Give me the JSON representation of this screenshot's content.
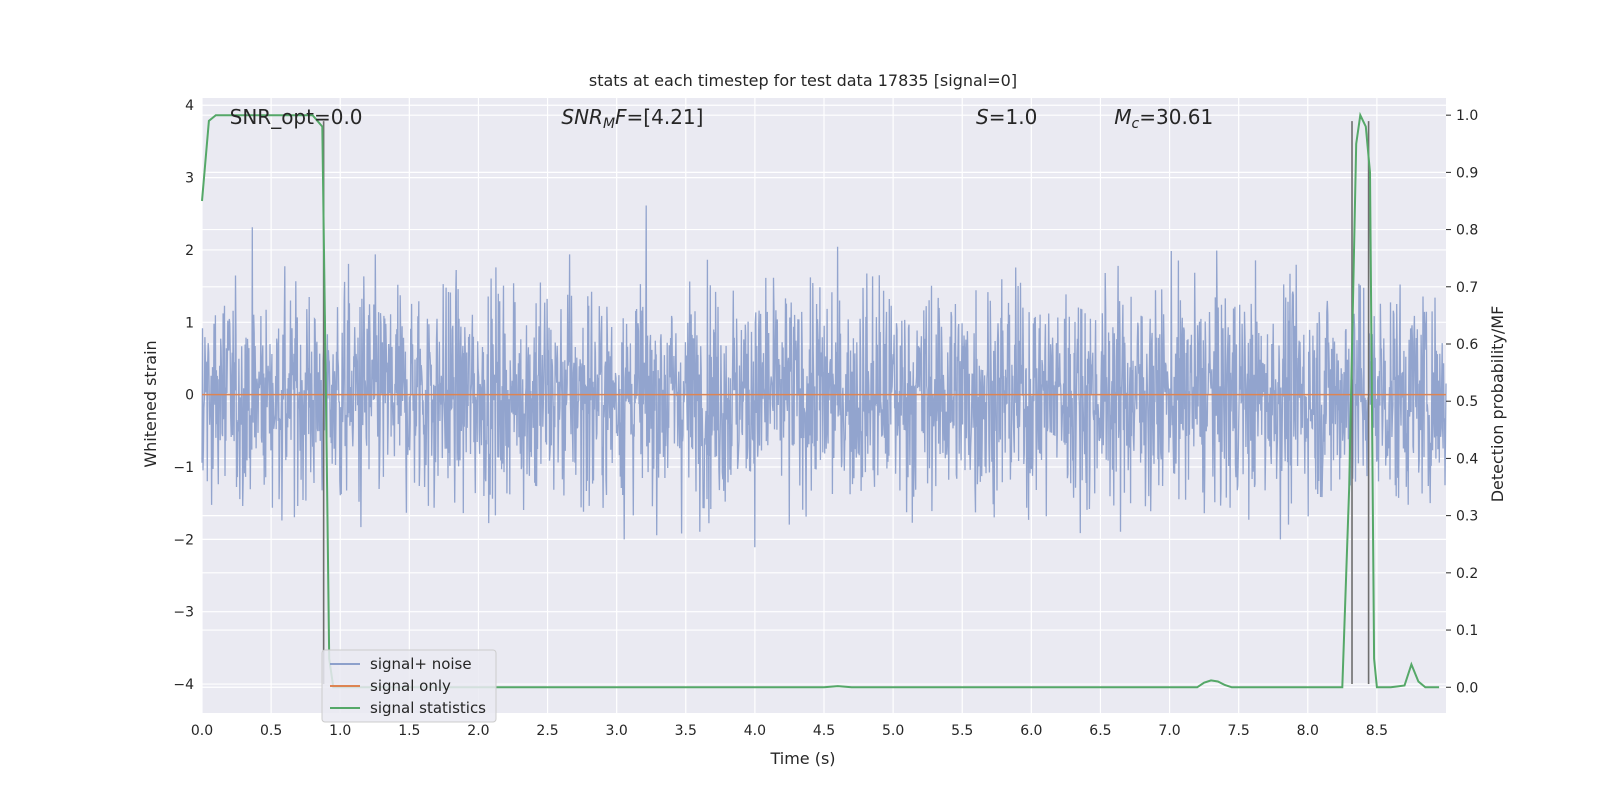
{
  "chart_data": {
    "type": "line",
    "title": "stats at each timestep for test data 17835 [signal=0]",
    "xlabel": "Time (s)",
    "ylabel": "Whitened strain",
    "y2label": "Detection probability/MF",
    "xlim": [
      0.0,
      9.0
    ],
    "ylim": [
      -4.4,
      4.1
    ],
    "y2lim": [
      -0.045,
      1.03
    ],
    "xticks": [
      0.0,
      0.5,
      1.0,
      1.5,
      2.0,
      2.5,
      3.0,
      3.5,
      4.0,
      4.5,
      5.0,
      5.5,
      6.0,
      6.5,
      7.0,
      7.5,
      8.0,
      8.5
    ],
    "xtick_labels": [
      "0.0",
      "0.5",
      "1.0",
      "1.5",
      "2.0",
      "2.5",
      "3.0",
      "3.5",
      "4.0",
      "4.5",
      "5.0",
      "5.5",
      "6.0",
      "6.5",
      "7.0",
      "7.5",
      "8.0",
      "8.5"
    ],
    "yticks": [
      4,
      3,
      2,
      1,
      0,
      -1,
      -2,
      -3,
      -4
    ],
    "ytick_labels": [
      "4",
      "3",
      "2",
      "1",
      "0",
      "−1",
      "−2",
      "−3",
      "−4"
    ],
    "y2ticks": [
      1.0,
      0.9,
      0.8,
      0.7,
      0.6,
      0.5,
      0.4,
      0.3,
      0.2,
      0.1,
      0.0
    ],
    "y2tick_labels": [
      "1.0",
      "0.9",
      "0.8",
      "0.7",
      "0.6",
      "0.5",
      "0.4",
      "0.3",
      "0.2",
      "0.1",
      "0.0"
    ],
    "grid": true,
    "legend_position": "lower-left",
    "annotations": [
      {
        "text": "SNR_opt=0.0",
        "x": 0.2
      },
      {
        "text": "SNR_MF=[4.21]",
        "x": 2.6
      },
      {
        "text": "S=1.0",
        "x": 5.6
      },
      {
        "text": "M_c=30.61",
        "x": 6.6
      }
    ],
    "series": [
      {
        "name": "signal+ noise",
        "color": "#8da0cb",
        "axis": "left",
        "note": "dense noise band spanning roughly -3.5 to 3.7"
      },
      {
        "name": "signal only",
        "color": "#dd8452",
        "axis": "left",
        "values_constant": 0.0
      },
      {
        "name": "signal statistics",
        "color": "#55a868",
        "axis": "right",
        "x": [
          0.0,
          0.05,
          0.1,
          0.2,
          0.4,
          0.6,
          0.8,
          0.87,
          0.9,
          0.92,
          0.95,
          1.0,
          2.0,
          3.0,
          4.0,
          4.5,
          4.6,
          4.7,
          5.0,
          6.0,
          7.0,
          7.2,
          7.25,
          7.3,
          7.35,
          7.4,
          7.45,
          7.5,
          8.0,
          8.25,
          8.3,
          8.35,
          8.38,
          8.42,
          8.45,
          8.48,
          8.5,
          8.6,
          8.7,
          8.75,
          8.8,
          8.85,
          8.9,
          8.95
        ],
        "y": [
          0.85,
          0.99,
          1.0,
          1.0,
          1.0,
          1.0,
          1.0,
          0.98,
          0.45,
          0.05,
          0.0,
          0.0,
          0.0,
          0.0,
          0.0,
          0.0,
          0.002,
          0.0,
          0.0,
          0.0,
          0.0,
          0.0,
          0.008,
          0.012,
          0.01,
          0.004,
          0.0,
          0.0,
          0.0,
          0.0,
          0.35,
          0.95,
          1.0,
          0.98,
          0.9,
          0.05,
          0.0,
          0.0,
          0.003,
          0.04,
          0.01,
          0.0,
          0.0,
          0.0
        ]
      }
    ],
    "markers": [
      {
        "x": 0.88,
        "y_top": 3.78,
        "y_bottom": -4.0,
        "color": "#6e6e6e"
      },
      {
        "x": 8.32,
        "y_top": 3.78,
        "y_bottom": -4.0,
        "color": "#6e6e6e"
      },
      {
        "x": 8.44,
        "y_top": 3.78,
        "y_bottom": -4.0,
        "color": "#6e6e6e"
      }
    ]
  }
}
